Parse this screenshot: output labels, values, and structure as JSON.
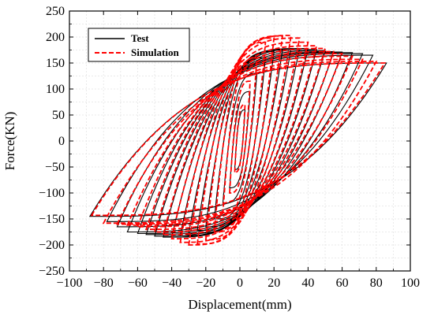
{
  "chart_data": {
    "type": "line",
    "title": "",
    "xlabel": "Displacement(mm)",
    "ylabel": "Force(KN)",
    "xlim": [
      -100,
      100
    ],
    "ylim": [
      -250,
      250
    ],
    "xticks": [
      -100,
      -80,
      -60,
      -40,
      -20,
      0,
      20,
      40,
      60,
      80,
      100
    ],
    "yticks": [
      -250,
      -200,
      -150,
      -100,
      -50,
      0,
      50,
      100,
      150,
      200,
      250
    ],
    "grid": true,
    "legend_position": "top-left",
    "series": [
      {
        "name": "Test",
        "color": "#000000",
        "line_style": "solid",
        "loops": [
          {
            "dmax": 3,
            "fmax": 60,
            "dmin": -3,
            "fmin": -55
          },
          {
            "dmax": 6,
            "fmax": 95,
            "dmin": -6,
            "fmin": -90
          },
          {
            "dmax": 10,
            "fmax": 130,
            "dmin": -10,
            "fmin": -120
          },
          {
            "dmax": 15,
            "fmax": 160,
            "dmin": -15,
            "fmin": -150
          },
          {
            "dmax": 20,
            "fmax": 172,
            "dmin": -20,
            "fmin": -165
          },
          {
            "dmax": 25,
            "fmax": 175,
            "dmin": -25,
            "fmin": -172
          },
          {
            "dmax": 30,
            "fmax": 177,
            "dmin": -30,
            "fmin": -178
          },
          {
            "dmax": 35,
            "fmax": 178,
            "dmin": -35,
            "fmin": -182
          },
          {
            "dmax": 40,
            "fmax": 178,
            "dmin": -40,
            "fmin": -185
          },
          {
            "dmax": 45,
            "fmax": 176,
            "dmin": -45,
            "fmin": -185
          },
          {
            "dmax": 50,
            "fmax": 174,
            "dmin": -50,
            "fmin": -183
          },
          {
            "dmax": 55,
            "fmax": 172,
            "dmin": -55,
            "fmin": -180
          },
          {
            "dmax": 60,
            "fmax": 171,
            "dmin": -60,
            "fmin": -178
          },
          {
            "dmax": 66,
            "fmax": 170,
            "dmin": -66,
            "fmin": -175
          },
          {
            "dmax": 72,
            "fmax": 168,
            "dmin": -72,
            "fmin": -165
          },
          {
            "dmax": 78,
            "fmax": 165,
            "dmin": -78,
            "fmin": -155
          },
          {
            "dmax": 86,
            "fmax": 150,
            "dmin": -88,
            "fmin": -145
          }
        ]
      },
      {
        "name": "Simulation",
        "color": "#ff0000",
        "line_style": "dashed",
        "loops": [
          {
            "dmax": 3,
            "fmax": 70,
            "dmin": -3,
            "fmin": -60
          },
          {
            "dmax": 6,
            "fmax": 115,
            "dmin": -6,
            "fmin": -100
          },
          {
            "dmax": 10,
            "fmax": 160,
            "dmin": -10,
            "fmin": -140
          },
          {
            "dmax": 15,
            "fmax": 190,
            "dmin": -15,
            "fmin": -175
          },
          {
            "dmax": 20,
            "fmax": 198,
            "dmin": -20,
            "fmin": -190
          },
          {
            "dmax": 25,
            "fmax": 202,
            "dmin": -25,
            "fmin": -198
          },
          {
            "dmax": 30,
            "fmax": 203,
            "dmin": -30,
            "fmin": -200
          },
          {
            "dmax": 35,
            "fmax": 198,
            "dmin": -35,
            "fmin": -195
          },
          {
            "dmax": 40,
            "fmax": 190,
            "dmin": -40,
            "fmin": -188
          },
          {
            "dmax": 45,
            "fmax": 183,
            "dmin": -45,
            "fmin": -180
          },
          {
            "dmax": 50,
            "fmax": 178,
            "dmin": -50,
            "fmin": -175
          },
          {
            "dmax": 55,
            "fmax": 172,
            "dmin": -55,
            "fmin": -170
          },
          {
            "dmax": 60,
            "fmax": 168,
            "dmin": -60,
            "fmin": -165
          },
          {
            "dmax": 66,
            "fmax": 163,
            "dmin": -66,
            "fmin": -162
          },
          {
            "dmax": 72,
            "fmax": 157,
            "dmin": -72,
            "fmin": -160
          },
          {
            "dmax": 80,
            "fmax": 153,
            "dmin": -80,
            "fmin": -158
          },
          {
            "dmax": 85,
            "fmax": 150,
            "dmin": -87,
            "fmin": -143
          }
        ]
      }
    ]
  }
}
